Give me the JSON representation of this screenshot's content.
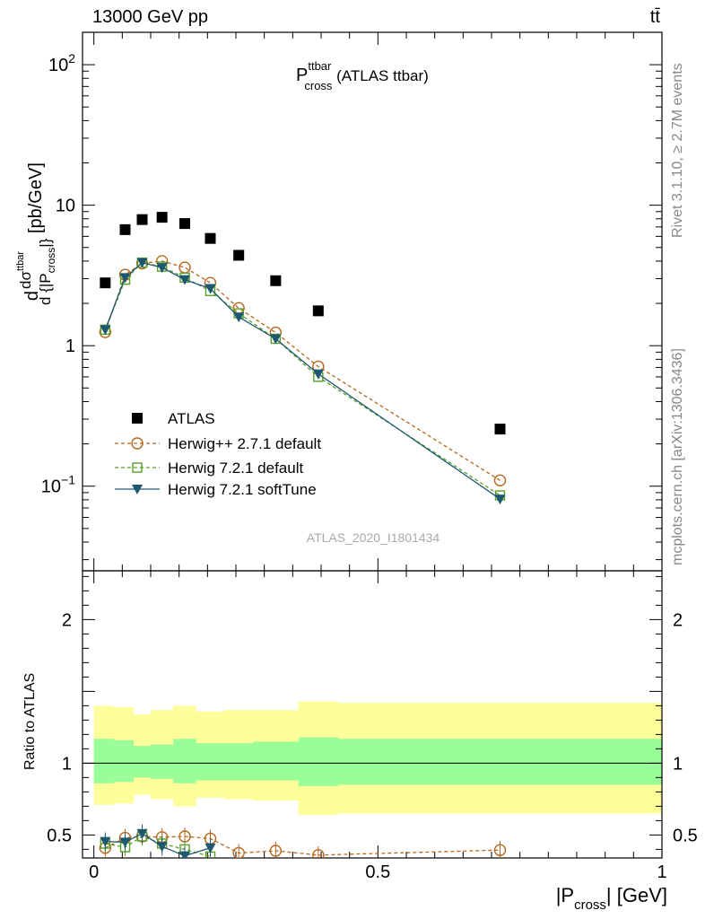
{
  "header": {
    "energy_label": "13000 GeV pp",
    "process_label": "tt̄"
  },
  "side_text": {
    "rivet": "Rivet 3.1.10, ≥ 2.7M events",
    "mcplots": "mcplots.cern.ch [arXiv:1306.3436]"
  },
  "plot_title": {
    "main": "P",
    "sup": "ttbar",
    "sub": "cross",
    "rest": " (ATLAS ttbar)"
  },
  "watermark": "ATLAS_2020_I1801434",
  "colors": {
    "atlas": "#000000",
    "herwigpp": "#b8651d",
    "herwig721": "#58a02a",
    "softtune": "#1d5870",
    "band_yellow": "#fdfd99",
    "band_green": "#99fd99"
  },
  "chart_data": [
    {
      "type": "scatter",
      "panel": "main",
      "ylabel": "dσ/d{|P_cross|} [pb/GeV]",
      "ylabel_parts": {
        "d": "d",
        "sigma": "dσ",
        "sigma_sup": "ttbar",
        "denom": "d {|P",
        "denom_sub": "cross",
        "denom_close": "|}",
        "unit": " [pb/GeV]"
      },
      "yscale": "log",
      "xlim": [
        -0.02,
        1.0
      ],
      "ylim": [
        0.025,
        170
      ],
      "yticks": [
        {
          "value": 0.1,
          "label": "10",
          "sup": "−1"
        },
        {
          "value": 1,
          "label": "1",
          "sup": ""
        },
        {
          "value": 10,
          "label": "10",
          "sup": ""
        },
        {
          "value": 100,
          "label": "10",
          "sup": "2"
        }
      ],
      "legend_position": "lower-left",
      "series": [
        {
          "name": "ATLAS",
          "marker": "filled-square",
          "x": [
            0.02,
            0.055,
            0.085,
            0.12,
            0.16,
            0.205,
            0.255,
            0.32,
            0.395,
            0.715
          ],
          "y": [
            2.8,
            6.7,
            7.9,
            8.2,
            7.4,
            5.8,
            4.4,
            2.9,
            1.77,
            0.255
          ]
        },
        {
          "name": "Herwig++ 2.7.1 default",
          "marker": "open-circle",
          "line": "dashed",
          "x": [
            0.02,
            0.055,
            0.085,
            0.12,
            0.16,
            0.205,
            0.255,
            0.32,
            0.395,
            0.715
          ],
          "y": [
            1.25,
            3.2,
            3.85,
            4.0,
            3.6,
            2.8,
            1.85,
            1.24,
            0.71,
            0.11
          ]
        },
        {
          "name": "Herwig 7.2.1 default",
          "marker": "open-square",
          "line": "dashed",
          "x": [
            0.02,
            0.055,
            0.085,
            0.12,
            0.16,
            0.205,
            0.255,
            0.32,
            0.395,
            0.715
          ],
          "y": [
            1.3,
            2.95,
            3.9,
            3.65,
            3.05,
            2.45,
            1.7,
            1.12,
            0.6,
            0.086
          ]
        },
        {
          "name": "Herwig 7.2.1 softTune",
          "marker": "filled-triangle-down",
          "line": "solid",
          "x": [
            0.02,
            0.055,
            0.085,
            0.12,
            0.16,
            0.205,
            0.255,
            0.32,
            0.395,
            0.715
          ],
          "y": [
            1.3,
            3.05,
            3.9,
            3.6,
            2.95,
            2.55,
            1.6,
            1.12,
            0.63,
            0.081
          ]
        }
      ]
    },
    {
      "type": "line",
      "panel": "ratio",
      "ylabel": "Ratio to ATLAS",
      "xlabel": "|P_cross| [GeV]",
      "xlabel_parts": {
        "pre": "|P",
        "sub": "cross",
        "post": "| [GeV]"
      },
      "xlim": [
        -0.02,
        1.0
      ],
      "ylim": [
        0.34,
        2.34
      ],
      "xticks": [
        0,
        0.5,
        1
      ],
      "xtick_labels": [
        "0",
        "0.5",
        "1"
      ],
      "yticks": [
        0.5,
        1,
        2
      ],
      "ytick_labels": [
        "0.5",
        "1",
        "2"
      ],
      "bands": {
        "edges": [
          0.0,
          0.035,
          0.07,
          0.1,
          0.14,
          0.18,
          0.23,
          0.28,
          0.36,
          0.43,
          1.0
        ],
        "yellow_lo": [
          0.71,
          0.72,
          0.78,
          0.75,
          0.7,
          0.76,
          0.75,
          0.74,
          0.64,
          0.65
        ],
        "yellow_hi": [
          1.4,
          1.39,
          1.34,
          1.37,
          1.4,
          1.36,
          1.37,
          1.37,
          1.43,
          1.42
        ],
        "green_lo": [
          0.86,
          0.87,
          0.9,
          0.89,
          0.86,
          0.88,
          0.88,
          0.88,
          0.84,
          0.85
        ],
        "green_hi": [
          1.17,
          1.16,
          1.12,
          1.13,
          1.17,
          1.14,
          1.14,
          1.15,
          1.18,
          1.17
        ]
      },
      "series": [
        {
          "name": "Herwig++ 2.7.1 default",
          "x": [
            0.02,
            0.055,
            0.085,
            0.12,
            0.16,
            0.205,
            0.255,
            0.32,
            0.395,
            0.715
          ],
          "y": [
            0.41,
            0.48,
            0.49,
            0.485,
            0.49,
            0.475,
            0.375,
            0.39,
            0.36,
            0.395
          ]
        },
        {
          "name": "Herwig 7.2.1 default",
          "x": [
            0.02,
            0.055,
            0.085,
            0.12,
            0.16,
            0.205
          ],
          "y": [
            0.44,
            0.415,
            0.49,
            0.44,
            0.4,
            0.35
          ]
        },
        {
          "name": "Herwig 7.2.1 softTune",
          "x": [
            0.02,
            0.055,
            0.085,
            0.12,
            0.16,
            0.205
          ],
          "y": [
            0.455,
            0.45,
            0.51,
            0.42,
            0.355,
            0.41
          ]
        }
      ]
    }
  ]
}
